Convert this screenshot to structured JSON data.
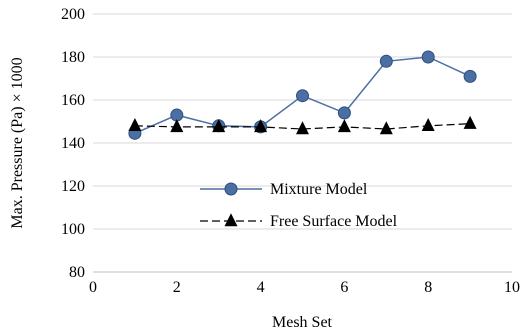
{
  "chart_data": {
    "type": "line",
    "title": "",
    "xlabel": "Mesh Set",
    "ylabel": "Max. Pressure (Pa) × 1000",
    "xlim": [
      0,
      10
    ],
    "ylim": [
      80,
      200
    ],
    "xticks": [
      0,
      2,
      4,
      6,
      8,
      10
    ],
    "yticks": [
      80,
      100,
      120,
      140,
      160,
      180,
      200
    ],
    "grid": "horizontal",
    "legend_position": "center-bottom",
    "series": [
      {
        "name": "Mixture Model",
        "color": "#4a6fa5",
        "marker": "circle",
        "line_style": "solid",
        "x": [
          1,
          2,
          3,
          4,
          5,
          6,
          7,
          8,
          9
        ],
        "y": [
          144.5,
          153,
          148,
          147.5,
          162,
          154,
          178,
          180,
          171
        ]
      },
      {
        "name": "Free Surface Model",
        "color": "#000000",
        "marker": "triangle",
        "line_style": "dashed",
        "x": [
          1,
          2,
          3,
          4,
          5,
          6,
          7,
          8,
          9
        ],
        "y": [
          148,
          147.5,
          147.5,
          147.5,
          146.5,
          147.5,
          146.5,
          148,
          149
        ]
      }
    ]
  }
}
